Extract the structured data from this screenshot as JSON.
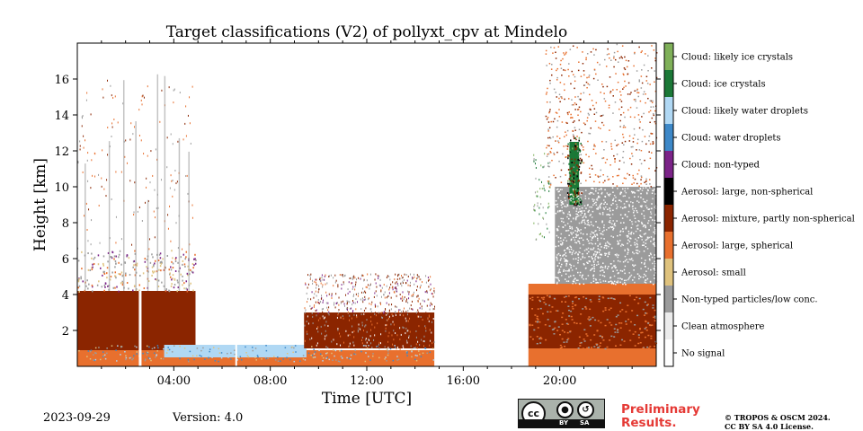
{
  "chart_data": {
    "type": "heatmap",
    "title": "Target classifications (V2) of pollyxt_cpv at Mindelo",
    "xlabel": "Time [UTC]",
    "ylabel": "Height [km]",
    "xlim": [
      0,
      24
    ],
    "ylim": [
      0,
      18
    ],
    "x_ticks": [
      "04:00",
      "08:00",
      "12:00",
      "16:00",
      "20:00"
    ],
    "x_tick_values": [
      4,
      8,
      12,
      16,
      20
    ],
    "y_ticks": [
      "2",
      "4",
      "6",
      "8",
      "10",
      "12",
      "14",
      "16"
    ],
    "y_tick_values": [
      2,
      4,
      6,
      8,
      10,
      12,
      14,
      16
    ],
    "classes": [
      {
        "label": "No signal",
        "color": "#ffffff"
      },
      {
        "label": "Clean atmosphere",
        "color": "#ececec"
      },
      {
        "label": "Non-typed particles/low conc.",
        "color": "#9b9b9b"
      },
      {
        "label": "Aerosol: small",
        "color": "#dfc27d"
      },
      {
        "label": "Aerosol: large, spherical",
        "color": "#e8702e"
      },
      {
        "label": "Aerosol: mixture, partly non-spherical",
        "color": "#8b2500"
      },
      {
        "label": "Aerosol: large, non-spherical",
        "color": "#000000"
      },
      {
        "label": "Cloud: non-typed",
        "color": "#7b2388"
      },
      {
        "label": "Cloud: water droplets",
        "color": "#3d88c8"
      },
      {
        "label": "Cloud: likely water droplets",
        "color": "#b0d8f4"
      },
      {
        "label": "Cloud: ice crystals",
        "color": "#1b7837"
      },
      {
        "label": "Cloud: likely ice crystals",
        "color": "#7fb059"
      }
    ],
    "regions": [
      {
        "class": 4,
        "t": [
          0,
          14.8
        ],
        "h": [
          0,
          0.9
        ]
      },
      {
        "class": 5,
        "t": [
          0,
          4.9
        ],
        "h": [
          0.9,
          4.2
        ]
      },
      {
        "class": 9,
        "t": [
          3.6,
          9.5
        ],
        "h": [
          0.5,
          1.2
        ]
      },
      {
        "class": 5,
        "t": [
          9.4,
          14.8
        ],
        "h": [
          1.0,
          3.0
        ]
      },
      {
        "class": 4,
        "t": [
          18.7,
          24
        ],
        "h": [
          0,
          1.0
        ]
      },
      {
        "class": 5,
        "t": [
          18.7,
          24
        ],
        "h": [
          1.0,
          4.0
        ]
      },
      {
        "class": 4,
        "t": [
          18.7,
          24
        ],
        "h": [
          4.0,
          4.6
        ]
      },
      {
        "class": 2,
        "t": [
          19.8,
          24
        ],
        "h": [
          4.6,
          10.0
        ]
      },
      {
        "class": 10,
        "t": [
          20.4,
          20.8
        ],
        "h": [
          9.0,
          12.5
        ]
      }
    ]
  },
  "footer": {
    "date": "2023-09-29",
    "version": "Version: 4.0",
    "preliminary": "Preliminary Results.",
    "copyright_line1": "© TROPOS & OSCM 2024.",
    "copyright_line2": "CC BY SA 4.0 License.",
    "license_badge": {
      "cc": "cc",
      "by": "BY",
      "sa": "SA"
    }
  }
}
